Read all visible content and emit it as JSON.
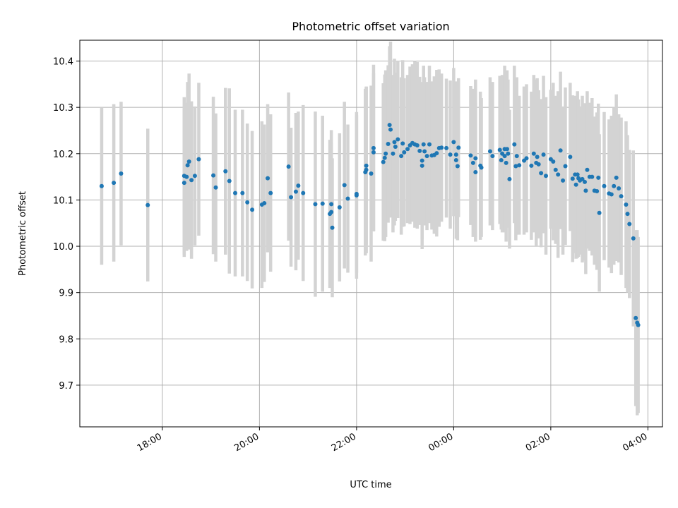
{
  "chart_data": {
    "type": "scatter",
    "title": "Photometric offset variation",
    "xlabel": "UTC time",
    "ylabel": "Photometric offset",
    "x_unit": "hours (UTC, times after midnight shown as 24+h)",
    "xlim": [
      16.3,
      28.3
    ],
    "ylim": [
      9.61,
      10.445
    ],
    "grid": true,
    "xticks": [
      {
        "value": 18,
        "label": "18:00"
      },
      {
        "value": 20,
        "label": "20:00"
      },
      {
        "value": 22,
        "label": "22:00"
      },
      {
        "value": 24,
        "label": "00:00"
      },
      {
        "value": 26,
        "label": "02:00"
      },
      {
        "value": 28,
        "label": "04:00"
      }
    ],
    "yticks": [
      {
        "value": 9.7,
        "label": "9.7"
      },
      {
        "value": 9.8,
        "label": "9.8"
      },
      {
        "value": 9.9,
        "label": "9.9"
      },
      {
        "value": 10.0,
        "label": "10.0"
      },
      {
        "value": 10.1,
        "label": "10.1"
      },
      {
        "value": 10.2,
        "label": "10.2"
      },
      {
        "value": 10.3,
        "label": "10.3"
      },
      {
        "value": 10.4,
        "label": "10.4"
      }
    ],
    "marker_color": "#1f77b4",
    "errorbar_color": "#d3d3d3",
    "series": [
      {
        "points": [
          [
            16.75,
            10.13,
            0.17
          ],
          [
            17.0,
            10.137,
            0.17
          ],
          [
            17.15,
            10.157,
            0.155
          ],
          [
            17.7,
            10.089,
            0.165
          ],
          [
            18.45,
            10.137,
            0.16
          ],
          [
            18.45,
            10.152,
            0.17
          ],
          [
            18.5,
            10.15,
            0.16
          ],
          [
            18.52,
            10.175,
            0.18
          ],
          [
            18.55,
            10.183,
            0.19
          ],
          [
            18.6,
            10.143,
            0.17
          ],
          [
            18.67,
            10.152,
            0.15
          ],
          [
            18.75,
            10.188,
            0.165
          ],
          [
            19.05,
            10.153,
            0.17
          ],
          [
            19.1,
            10.127,
            0.16
          ],
          [
            19.3,
            10.162,
            0.18
          ],
          [
            19.38,
            10.141,
            0.2
          ],
          [
            19.5,
            10.115,
            0.18
          ],
          [
            19.65,
            10.115,
            0.18
          ],
          [
            19.75,
            10.095,
            0.17
          ],
          [
            19.85,
            10.079,
            0.17
          ],
          [
            20.05,
            10.09,
            0.18
          ],
          [
            20.1,
            10.093,
            0.17
          ],
          [
            20.17,
            10.147,
            0.16
          ],
          [
            20.23,
            10.115,
            0.17
          ],
          [
            20.6,
            10.172,
            0.16
          ],
          [
            20.65,
            10.106,
            0.15
          ],
          [
            20.75,
            10.118,
            0.17
          ],
          [
            20.8,
            10.131,
            0.16
          ],
          [
            20.9,
            10.115,
            0.19
          ],
          [
            21.15,
            10.091,
            0.2
          ],
          [
            21.3,
            10.092,
            0.19
          ],
          [
            21.45,
            10.07,
            0.16
          ],
          [
            21.48,
            10.091,
            0.16
          ],
          [
            21.5,
            10.04,
            0.15
          ],
          [
            21.48,
            10.074,
            0.15
          ],
          [
            21.65,
            10.084,
            0.16
          ],
          [
            21.75,
            10.132,
            0.18
          ],
          [
            21.82,
            10.103,
            0.16
          ],
          [
            22.0,
            10.11,
            0.18
          ],
          [
            22.0,
            10.113,
            0.17
          ],
          [
            22.18,
            10.16,
            0.18
          ],
          [
            22.2,
            10.165,
            0.18
          ],
          [
            22.2,
            10.174,
            0.17
          ],
          [
            22.3,
            10.157,
            0.19
          ],
          [
            22.35,
            10.212,
            0.18
          ],
          [
            22.35,
            10.203,
            0.17
          ],
          [
            22.55,
            10.182,
            0.17
          ],
          [
            22.58,
            10.191,
            0.18
          ],
          [
            22.6,
            10.2,
            0.18
          ],
          [
            22.65,
            10.221,
            0.17
          ],
          [
            22.68,
            10.262,
            0.17
          ],
          [
            22.7,
            10.252,
            0.19
          ],
          [
            22.75,
            10.2,
            0.17
          ],
          [
            22.78,
            10.225,
            0.18
          ],
          [
            22.8,
            10.215,
            0.16
          ],
          [
            22.85,
            10.231,
            0.17
          ],
          [
            22.92,
            10.195,
            0.17
          ],
          [
            22.95,
            10.222,
            0.18
          ],
          [
            22.98,
            10.203,
            0.16
          ],
          [
            23.05,
            10.21,
            0.16
          ],
          [
            23.1,
            10.218,
            0.17
          ],
          [
            23.15,
            10.223,
            0.17
          ],
          [
            23.2,
            10.22,
            0.18
          ],
          [
            23.25,
            10.218,
            0.18
          ],
          [
            23.3,
            10.206,
            0.16
          ],
          [
            23.35,
            10.185,
            0.17
          ],
          [
            23.35,
            10.174,
            0.18
          ],
          [
            23.38,
            10.22,
            0.17
          ],
          [
            23.4,
            10.205,
            0.16
          ],
          [
            23.45,
            10.195,
            0.16
          ],
          [
            23.5,
            10.22,
            0.17
          ],
          [
            23.55,
            10.196,
            0.16
          ],
          [
            23.6,
            10.197,
            0.17
          ],
          [
            23.65,
            10.201,
            0.18
          ],
          [
            23.7,
            10.212,
            0.17
          ],
          [
            23.75,
            10.213,
            0.16
          ],
          [
            23.85,
            10.212,
            0.15
          ],
          [
            23.93,
            10.198,
            0.16
          ],
          [
            24.0,
            10.225,
            0.16
          ],
          [
            24.05,
            10.198,
            0.15
          ],
          [
            24.05,
            10.186,
            0.17
          ],
          [
            24.08,
            10.173,
            0.16
          ],
          [
            24.1,
            10.213,
            0.15
          ],
          [
            24.35,
            10.196,
            0.15
          ],
          [
            24.4,
            10.18,
            0.16
          ],
          [
            24.45,
            10.16,
            0.15
          ],
          [
            24.45,
            10.19,
            0.17
          ],
          [
            24.55,
            10.174,
            0.16
          ],
          [
            24.57,
            10.17,
            0.15
          ],
          [
            24.75,
            10.205,
            0.16
          ],
          [
            24.8,
            10.195,
            0.16
          ],
          [
            24.95,
            10.208,
            0.16
          ],
          [
            24.98,
            10.186,
            0.15
          ],
          [
            25.0,
            10.2,
            0.17
          ],
          [
            25.05,
            10.21,
            0.18
          ],
          [
            25.05,
            10.195,
            0.16
          ],
          [
            25.08,
            10.18,
            0.17
          ],
          [
            25.1,
            10.21,
            0.17
          ],
          [
            25.12,
            10.2,
            0.16
          ],
          [
            25.15,
            10.145,
            0.15
          ],
          [
            25.25,
            10.22,
            0.17
          ],
          [
            25.28,
            10.173,
            0.16
          ],
          [
            25.3,
            10.195,
            0.17
          ],
          [
            25.35,
            10.175,
            0.15
          ],
          [
            25.45,
            10.185,
            0.16
          ],
          [
            25.5,
            10.19,
            0.16
          ],
          [
            25.6,
            10.174,
            0.16
          ],
          [
            25.65,
            10.2,
            0.17
          ],
          [
            25.7,
            10.18,
            0.18
          ],
          [
            25.72,
            10.193,
            0.17
          ],
          [
            25.75,
            10.177,
            0.16
          ],
          [
            25.8,
            10.158,
            0.16
          ],
          [
            25.85,
            10.198,
            0.17
          ],
          [
            25.9,
            10.152,
            0.17
          ],
          [
            26.0,
            10.188,
            0.15
          ],
          [
            26.05,
            10.183,
            0.17
          ],
          [
            26.1,
            10.165,
            0.16
          ],
          [
            26.15,
            10.155,
            0.18
          ],
          [
            26.2,
            10.207,
            0.17
          ],
          [
            26.25,
            10.142,
            0.16
          ],
          [
            26.3,
            10.173,
            0.17
          ],
          [
            26.4,
            10.193,
            0.16
          ],
          [
            26.45,
            10.146,
            0.18
          ],
          [
            26.5,
            10.155,
            0.17
          ],
          [
            26.52,
            10.133,
            0.16
          ],
          [
            26.55,
            10.155,
            0.18
          ],
          [
            26.57,
            10.147,
            0.17
          ],
          [
            26.6,
            10.142,
            0.16
          ],
          [
            26.65,
            10.145,
            0.18
          ],
          [
            26.7,
            10.139,
            0.17
          ],
          [
            26.72,
            10.12,
            0.18
          ],
          [
            26.75,
            10.165,
            0.17
          ],
          [
            26.8,
            10.15,
            0.16
          ],
          [
            26.85,
            10.15,
            0.17
          ],
          [
            26.9,
            10.12,
            0.16
          ],
          [
            26.95,
            10.119,
            0.17
          ],
          [
            26.98,
            10.148,
            0.16
          ],
          [
            27.0,
            10.072,
            0.17
          ],
          [
            27.1,
            10.13,
            0.16
          ],
          [
            27.2,
            10.114,
            0.16
          ],
          [
            27.25,
            10.112,
            0.17
          ],
          [
            27.3,
            10.13,
            0.17
          ],
          [
            27.35,
            10.148,
            0.18
          ],
          [
            27.4,
            10.125,
            0.16
          ],
          [
            27.45,
            10.108,
            0.17
          ],
          [
            27.55,
            10.09,
            0.18
          ],
          [
            27.58,
            10.07,
            0.17
          ],
          [
            27.62,
            10.048,
            0.16
          ],
          [
            27.7,
            10.017,
            0.19
          ],
          [
            27.75,
            9.845,
            0.19
          ],
          [
            27.78,
            9.835,
            0.2
          ],
          [
            27.8,
            9.83,
            0.19
          ]
        ]
      }
    ]
  }
}
